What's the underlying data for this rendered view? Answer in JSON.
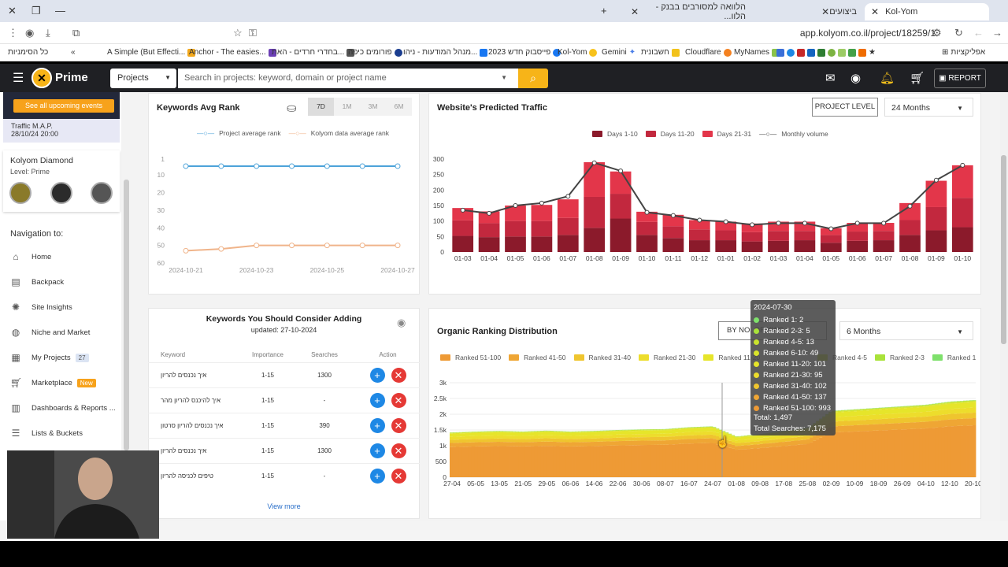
{
  "browser": {
    "tabs": [
      {
        "label": "Kol-Yom",
        "active": true
      },
      {
        "label": "ביצועים",
        "active": false
      },
      {
        "label": "הלוואה למסורבים בבנק - הלוו...",
        "active": false
      }
    ],
    "url": "app.kolyom.co.il/project/18259/1",
    "bookmarks": [
      "כל הסימניות",
      "A Simple (But Effecti...",
      "Anchor - The easies...",
      "בחדרי חרדים - האת...",
      "פורומים כיפה",
      "מנהל המודעות - ניהו...",
      "פייסבוק חדש 2023",
      "Kol-Yom",
      "Gemini",
      "חשבונית",
      "Cloudflare",
      "MyNames",
      "אפליקציות"
    ]
  },
  "header": {
    "brand": "Prime",
    "project_select": "Projects",
    "search_placeholder": "Search in projects: keyword, domain or project name",
    "report_label": "REPORT"
  },
  "sidebar": {
    "event_button": "See all upcoming events",
    "traffic_title": "Traffic M.A.P.",
    "traffic_date": "28/10/24 20:00",
    "level_name": "Kolyom Diamond",
    "level_text": "Level: Prime",
    "nav_title": "Navigation to:",
    "nav": [
      {
        "label": "Home",
        "icon": "home-icon"
      },
      {
        "label": "Backpack",
        "icon": "backpack-icon"
      },
      {
        "label": "Site Insights",
        "icon": "insights-icon"
      },
      {
        "label": "Niche and Market",
        "icon": "globe-icon"
      },
      {
        "label": "My Projects",
        "icon": "projects-icon",
        "badge": "27"
      },
      {
        "label": "Marketplace",
        "icon": "cart-icon",
        "badge": "New"
      },
      {
        "label": "Dashboards & Reports ...",
        "icon": "dashboard-icon"
      },
      {
        "label": "Lists & Buckets",
        "icon": "list-icon"
      }
    ]
  },
  "avg_rank": {
    "title": "Keywords Avg Rank",
    "ranges": [
      "7D",
      "1M",
      "3M",
      "6M"
    ],
    "active_range": "7D",
    "legend": [
      "Project average rank",
      "Kolyom data average rank"
    ],
    "y_ticks": [
      "1",
      "10",
      "20",
      "30",
      "40",
      "50",
      "60"
    ],
    "x_ticks": [
      "2024-10-21",
      "2024-10-23",
      "2024-10-25",
      "2024-10-27"
    ]
  },
  "traffic": {
    "title": "Website's Predicted Traffic",
    "project_level_btn": "PROJECT LEVEL",
    "period": "24 Months",
    "legend": [
      "Days 1-10",
      "Days 11-20",
      "Days 21-31",
      "Monthly volume"
    ],
    "y_ticks": [
      "300",
      "250",
      "200",
      "150",
      "100",
      "50",
      "0"
    ]
  },
  "keywords_table": {
    "title": "Keywords You Should Consider Adding",
    "updated": "updated: 27-10-2024",
    "headers": [
      "Keyword",
      "Importance",
      "Searches",
      "Action"
    ],
    "rows": [
      [
        "איך נכנסים להריון",
        "1-15",
        "1300"
      ],
      [
        "איך להיכנס להריון מהר",
        "1-15",
        "-"
      ],
      [
        "איך נכנסים להריון סרטון",
        "1-15",
        "390"
      ],
      [
        "איך נכנסים להריון",
        "1-15",
        "1300"
      ],
      [
        "טיפים לכניסה להריון",
        "1-15",
        "-"
      ]
    ],
    "view_more": "View more"
  },
  "organic": {
    "title": "Organic Ranking Distribution",
    "by_no_btn": "BY NO. OF KWS",
    "period": "6 Months",
    "legend": [
      "Ranked 51-100",
      "Ranked 41-50",
      "Ranked 31-40",
      "Ranked 21-30",
      "Ranked 11-20",
      "Ranked 4-5",
      "Ranked 2-3",
      "Ranked 1"
    ],
    "y_ticks": [
      "3k",
      "2.5k",
      "2k",
      "1.5k",
      "1k",
      "500",
      "0"
    ],
    "x_ticks": [
      "27-04",
      "05-05",
      "13-05",
      "21-05",
      "29-05",
      "06-06",
      "14-06",
      "22-06",
      "30-06",
      "08-07",
      "16-07",
      "24-07",
      "01-08",
      "09-08",
      "17-08",
      "25-08",
      "02-09",
      "10-09",
      "18-09",
      "26-09",
      "04-10",
      "12-10",
      "20-10"
    ],
    "tooltip": {
      "date": "2024-07-30",
      "lines": [
        {
          "label": "Ranked 1: 2",
          "color": "#7ee06b"
        },
        {
          "label": "Ranked 2-3: 5",
          "color": "#a9e23a"
        },
        {
          "label": "Ranked 4-5: 13",
          "color": "#c9e32d"
        },
        {
          "label": "Ranked 6-10: 49",
          "color": "#d9e42b"
        },
        {
          "label": "Ranked 11-20: 101",
          "color": "#e6e52a"
        },
        {
          "label": "Ranked 21-30: 95",
          "color": "#eddd2c"
        },
        {
          "label": "Ranked 31-40: 102",
          "color": "#efc52e"
        },
        {
          "label": "Ranked 41-50: 137",
          "color": "#efa634"
        },
        {
          "label": "Ranked 51-100: 993",
          "color": "#ee9a35"
        }
      ],
      "total": "Total: 1,497",
      "total_searches": "Total Searches: 7,175"
    }
  },
  "chart_data": [
    {
      "type": "line",
      "title": "Keywords Avg Rank",
      "x": [
        "2024-10-21",
        "2024-10-22",
        "2024-10-23",
        "2024-10-24",
        "2024-10-25",
        "2024-10-26",
        "2024-10-27"
      ],
      "series": [
        {
          "name": "Project average rank",
          "values": [
            5,
            5,
            5,
            5,
            5,
            5,
            5
          ],
          "color": "#4da3d9"
        },
        {
          "name": "Kolyom data average rank",
          "values": [
            53,
            52,
            50,
            50,
            50,
            50,
            50
          ],
          "color": "#f0b48a"
        }
      ],
      "ylim": [
        1,
        60
      ],
      "y_inverted": true
    },
    {
      "type": "bar",
      "title": "Website's Predicted Traffic",
      "categories": [
        "01-03",
        "01-04",
        "01-05",
        "01-06",
        "01-07",
        "01-08",
        "01-09",
        "01-10",
        "01-11",
        "01-12",
        "01-01",
        "01-02",
        "01-03",
        "01-04",
        "01-05",
        "01-06",
        "01-07",
        "01-08",
        "01-09",
        "01-10"
      ],
      "series": [
        {
          "name": "Days 1-10",
          "values": [
            52,
            48,
            50,
            50,
            55,
            78,
            108,
            55,
            45,
            38,
            38,
            34,
            36,
            38,
            30,
            36,
            38,
            55,
            70,
            80
          ],
          "color": "#8b1a2b"
        },
        {
          "name": "Days 11-20",
          "values": [
            50,
            45,
            50,
            50,
            55,
            100,
            80,
            42,
            38,
            35,
            32,
            30,
            32,
            30,
            25,
            30,
            30,
            48,
            75,
            95
          ],
          "color": "#c2283e"
        },
        {
          "name": "Days 21-31",
          "values": [
            40,
            38,
            50,
            52,
            60,
            112,
            72,
            33,
            37,
            30,
            28,
            28,
            30,
            30,
            22,
            28,
            26,
            55,
            85,
            105
          ],
          "color": "#e3364a"
        },
        {
          "name": "Monthly volume",
          "values": [
            135,
            125,
            150,
            158,
            180,
            288,
            262,
            128,
            118,
            103,
            98,
            88,
            93,
            93,
            75,
            93,
            93,
            148,
            232,
            280
          ],
          "color": "#444444"
        }
      ],
      "ylim": [
        0,
        300
      ]
    },
    {
      "type": "area",
      "title": "Organic Ranking Distribution",
      "x": [
        "27-04",
        "05-05",
        "13-05",
        "21-05",
        "29-05",
        "06-06",
        "14-06",
        "22-06",
        "30-06",
        "08-07",
        "16-07",
        "24-07",
        "01-08",
        "09-08",
        "17-08",
        "25-08",
        "02-09",
        "10-09",
        "18-09",
        "26-09",
        "04-10",
        "12-10",
        "20-10"
      ],
      "total_values": [
        1450,
        1480,
        1500,
        1480,
        1510,
        1480,
        1500,
        1530,
        1550,
        1560,
        1620,
        1650,
        1320,
        1400,
        1500,
        1600,
        2150,
        2200,
        2250,
        2300,
        2350,
        2450,
        2500
      ],
      "ylim": [
        0,
        3000
      ]
    }
  ]
}
